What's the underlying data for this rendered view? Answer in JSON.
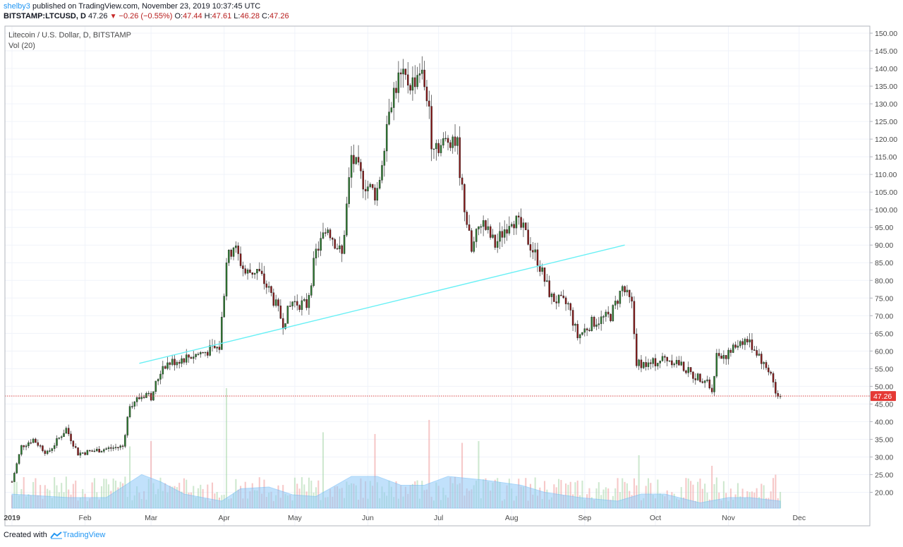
{
  "header": {
    "user": "shelby3",
    "published_text": "published on TradingView.com, November 23, 2019 10:37:45 UTC",
    "symbol": "BITSTAMP:LTCUSD, D",
    "last": "47.26",
    "change": "−0.26 (−0.55%)",
    "o_label": "O:",
    "o": "47.44",
    "h_label": "H:",
    "h": "47.61",
    "l_label": "L:",
    "l": "46.28",
    "c_label": "C:",
    "c": "47.26"
  },
  "legend": {
    "title": "Litecoin / U.S. Dollar, D, BITSTAMP",
    "volume": "Vol (20)"
  },
  "footer": {
    "created_with": "Created with",
    "brand": "TradingView"
  },
  "colors": {
    "up": "#2e7d32",
    "down": "#8b1a1a",
    "trendline": "#69f0f5",
    "price_line": "#d32f2f",
    "price_label_bg": "#e53935",
    "vol_ma": "#90caf9",
    "vol_up": "#a5d6a7",
    "vol_down": "#ef9a9a",
    "grid": "#f0f3fa"
  },
  "chart_data": {
    "type": "candlestick",
    "title": "Litecoin / U.S. Dollar, D, BITSTAMP",
    "y_ticks": [
      "150.00",
      "145.00",
      "140.00",
      "135.00",
      "130.00",
      "125.00",
      "120.00",
      "115.00",
      "110.00",
      "105.00",
      "100.00",
      "95.00",
      "90.00",
      "85.00",
      "80.00",
      "75.00",
      "70.00",
      "65.00",
      "60.00",
      "55.00",
      "50.00",
      "45.00",
      "40.00",
      "35.00",
      "30.00",
      "25.00",
      "20.00"
    ],
    "x_ticks": [
      "2019",
      "Feb",
      "Mar",
      "Apr",
      "May",
      "Jun",
      "Jul",
      "Aug",
      "Sep",
      "Oct",
      "Nov",
      "Dec"
    ],
    "ylim": [
      15.5,
      152
    ],
    "xlim": [
      "2018-12-29",
      "2019-12-31"
    ],
    "last_price_label": "47.26",
    "last_price": 47.26,
    "price_anchors": [
      [
        "2019-01-01",
        23
      ],
      [
        "2019-01-05",
        33
      ],
      [
        "2019-01-10",
        35
      ],
      [
        "2019-01-16",
        31
      ],
      [
        "2019-01-24",
        38
      ],
      [
        "2019-01-29",
        31
      ],
      [
        "2019-02-07",
        32
      ],
      [
        "2019-02-17",
        33
      ],
      [
        "2019-02-20",
        45
      ],
      [
        "2019-02-27",
        48
      ],
      [
        "2019-03-01",
        47
      ],
      [
        "2019-03-06",
        56
      ],
      [
        "2019-03-15",
        58
      ],
      [
        "2019-03-25",
        60
      ],
      [
        "2019-03-30",
        61
      ],
      [
        "2019-04-02",
        85
      ],
      [
        "2019-04-05",
        90
      ],
      [
        "2019-04-10",
        82
      ],
      [
        "2019-04-15",
        83
      ],
      [
        "2019-04-21",
        76
      ],
      [
        "2019-04-26",
        68
      ],
      [
        "2019-04-30",
        74
      ],
      [
        "2019-05-06",
        73
      ],
      [
        "2019-05-10",
        88
      ],
      [
        "2019-05-15",
        95
      ],
      [
        "2019-05-21",
        87
      ],
      [
        "2019-05-25",
        115
      ],
      [
        "2019-05-30",
        108
      ],
      [
        "2019-06-05",
        104
      ],
      [
        "2019-06-10",
        130
      ],
      [
        "2019-06-14",
        137
      ],
      [
        "2019-06-20",
        136
      ],
      [
        "2019-06-23",
        140
      ],
      [
        "2019-06-26",
        133
      ],
      [
        "2019-06-28",
        120
      ],
      [
        "2019-07-02",
        118
      ],
      [
        "2019-07-07",
        121
      ],
      [
        "2019-07-09",
        118
      ],
      [
        "2019-07-11",
        105
      ],
      [
        "2019-07-15",
        88
      ],
      [
        "2019-07-19",
        97
      ],
      [
        "2019-07-25",
        90
      ],
      [
        "2019-08-01",
        98
      ],
      [
        "2019-08-06",
        94
      ],
      [
        "2019-08-12",
        86
      ],
      [
        "2019-08-15",
        80
      ],
      [
        "2019-08-18",
        75
      ],
      [
        "2019-08-25",
        73
      ],
      [
        "2019-08-29",
        64
      ],
      [
        "2019-09-04",
        68
      ],
      [
        "2019-09-12",
        70
      ],
      [
        "2019-09-17",
        78
      ],
      [
        "2019-09-21",
        73
      ],
      [
        "2019-09-23",
        57
      ],
      [
        "2019-09-28",
        56
      ],
      [
        "2019-10-05",
        58
      ],
      [
        "2019-10-10",
        57
      ],
      [
        "2019-10-17",
        53
      ],
      [
        "2019-10-23",
        52
      ],
      [
        "2019-10-25",
        48
      ],
      [
        "2019-10-27",
        59
      ],
      [
        "2019-11-01",
        59
      ],
      [
        "2019-11-06",
        63
      ],
      [
        "2019-11-09",
        63
      ],
      [
        "2019-11-14",
        59
      ],
      [
        "2019-11-16",
        56
      ],
      [
        "2019-11-19",
        54
      ],
      [
        "2019-11-21",
        48
      ],
      [
        "2019-11-23",
        47.26
      ]
    ],
    "trendline": {
      "from": [
        "2019-02-24",
        56.5
      ],
      "to": [
        "2019-09-18",
        90
      ]
    },
    "volume_ma_anchors": [
      [
        "2019-01-01",
        19.5
      ],
      [
        "2019-01-25",
        18.5
      ],
      [
        "2019-02-10",
        18.5
      ],
      [
        "2019-02-25",
        25
      ],
      [
        "2019-03-05",
        23
      ],
      [
        "2019-03-15",
        19.5
      ],
      [
        "2019-03-31",
        17.5
      ],
      [
        "2019-04-08",
        21
      ],
      [
        "2019-04-20",
        21.5
      ],
      [
        "2019-04-30",
        19.3
      ],
      [
        "2019-05-10",
        18.8
      ],
      [
        "2019-05-25",
        24.5
      ],
      [
        "2019-06-05",
        24.5
      ],
      [
        "2019-06-15",
        22
      ],
      [
        "2019-06-25",
        22
      ],
      [
        "2019-07-05",
        24.5
      ],
      [
        "2019-07-20",
        23.5
      ],
      [
        "2019-08-05",
        22
      ],
      [
        "2019-08-15",
        20
      ],
      [
        "2019-08-30",
        18.5
      ],
      [
        "2019-09-15",
        17.5
      ],
      [
        "2019-09-25",
        19.5
      ],
      [
        "2019-10-05",
        19.5
      ],
      [
        "2019-10-20",
        17
      ],
      [
        "2019-11-01",
        18.5
      ],
      [
        "2019-11-10",
        18.5
      ],
      [
        "2019-11-23",
        17.5
      ]
    ],
    "volume_spikes": [
      [
        "2019-02-20",
        33
      ],
      [
        "2019-03-01",
        34.5
      ],
      [
        "2019-04-02",
        49.5
      ],
      [
        "2019-05-13",
        37
      ],
      [
        "2019-06-04",
        36.5
      ],
      [
        "2019-06-27",
        40.5
      ],
      [
        "2019-07-11",
        34
      ],
      [
        "2019-07-18",
        34.5
      ],
      [
        "2019-09-24",
        30.5
      ],
      [
        "2019-10-25",
        27.5
      ],
      [
        "2019-11-21",
        25
      ]
    ]
  }
}
